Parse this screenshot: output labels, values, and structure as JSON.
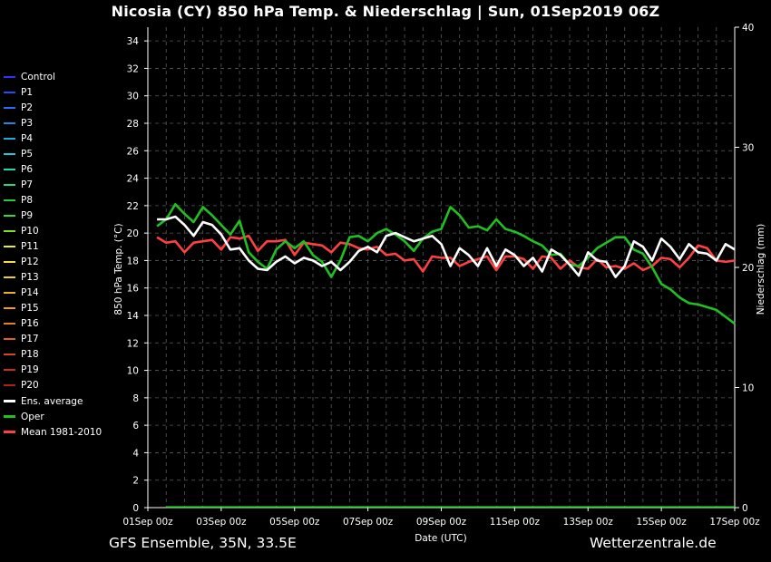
{
  "page": {
    "title": "Nicosia  (CY)  850 hPa Temp. & Niederschlag | Sun, 01Sep2019 06Z",
    "footer_left": "GFS Ensemble, 35N, 33.5E",
    "footer_right": "Wetterzentrale.de"
  },
  "chart_data": {
    "type": "line",
    "xlabel": "Date (UTC)",
    "ylabel": "850 hPa Temp. (°C)",
    "y2label": "Niederschlag (mm)",
    "x_ticks": [
      "01Sep 00z",
      "03Sep 00z",
      "05Sep 00z",
      "07Sep 00z",
      "09Sep 00z",
      "11Sep 00z",
      "13Sep 00z",
      "15Sep 00z",
      "17Sep 00z"
    ],
    "x_range_days": [
      0,
      16
    ],
    "ylim": [
      0,
      35
    ],
    "y_ticks": [
      0,
      2,
      4,
      6,
      8,
      10,
      12,
      14,
      16,
      18,
      20,
      22,
      24,
      26,
      28,
      30,
      32,
      34
    ],
    "y2lim": [
      0,
      40
    ],
    "y2_ticks": [
      0,
      10,
      20,
      30,
      40
    ],
    "grid": true,
    "legend_position": "left",
    "series": [
      {
        "name": "Control",
        "color": "#3030ff",
        "width": 1,
        "values": []
      },
      {
        "name": "P1",
        "color": "#1c50ff",
        "width": 1,
        "values": []
      },
      {
        "name": "P2",
        "color": "#2a6cff",
        "width": 1,
        "values": []
      },
      {
        "name": "P3",
        "color": "#2088e8",
        "width": 1,
        "values": []
      },
      {
        "name": "P4",
        "color": "#20a8e0",
        "width": 1,
        "values": []
      },
      {
        "name": "P5",
        "color": "#20c8d8",
        "width": 1,
        "values": []
      },
      {
        "name": "P6",
        "color": "#20d8a8",
        "width": 1,
        "values": []
      },
      {
        "name": "P7",
        "color": "#20d880",
        "width": 1,
        "values": []
      },
      {
        "name": "P8",
        "color": "#28c840",
        "width": 1,
        "values": []
      },
      {
        "name": "P9",
        "color": "#30e030",
        "width": 1,
        "values": []
      },
      {
        "name": "P10",
        "color": "#80e020",
        "width": 1,
        "values": []
      },
      {
        "name": "P11",
        "color": "#f0f020",
        "width": 1,
        "values": []
      },
      {
        "name": "P12",
        "color": "#f0e040",
        "width": 1,
        "values": []
      },
      {
        "name": "P13",
        "color": "#f0d020",
        "width": 1,
        "values": []
      },
      {
        "name": "P14",
        "color": "#f0b020",
        "width": 1,
        "values": []
      },
      {
        "name": "P15",
        "color": "#f0a000",
        "width": 1,
        "values": []
      },
      {
        "name": "P16",
        "color": "#e88020",
        "width": 1,
        "values": []
      },
      {
        "name": "P17",
        "color": "#e06020",
        "width": 1,
        "values": []
      },
      {
        "name": "P18",
        "color": "#d84820",
        "width": 1,
        "values": []
      },
      {
        "name": "P19",
        "color": "#c83010",
        "width": 1,
        "values": []
      },
      {
        "name": "P20",
        "color": "#b02010",
        "width": 1,
        "values": []
      },
      {
        "name": "Ens. average",
        "color": "#ffffff",
        "width": 2.6,
        "values": []
      },
      {
        "name": "Oper",
        "color": "#20c020",
        "width": 2.6,
        "values": []
      },
      {
        "name": "Mean 1981-2010",
        "color": "#ff4040",
        "width": 2.6,
        "values": []
      }
    ],
    "key_series": {
      "x_days": [
        0.25,
        0.5,
        0.75,
        1,
        1.25,
        1.5,
        1.75,
        2,
        2.25,
        2.5,
        2.75,
        3,
        3.25,
        3.5,
        3.75,
        4,
        4.25,
        4.5,
        4.75,
        5,
        5.25,
        5.5,
        5.75,
        6,
        6.25,
        6.5,
        6.75,
        7,
        7.25,
        7.5,
        7.75,
        8,
        8.25,
        8.5,
        8.75,
        9,
        9.25,
        9.5,
        9.75,
        10,
        10.25,
        10.5,
        10.75,
        11,
        11.25,
        11.5,
        11.75,
        12,
        12.25,
        12.5,
        12.75,
        13,
        13.25,
        13.5,
        13.75,
        14,
        14.25,
        14.5,
        14.75,
        15,
        15.25,
        15.5,
        15.75,
        16
      ],
      "ens_average": [
        21.0,
        21.0,
        21.2,
        20.6,
        19.8,
        20.8,
        20.6,
        19.9,
        18.8,
        18.9,
        18.0,
        17.4,
        17.3,
        17.9,
        18.3,
        17.8,
        18.2,
        18.0,
        17.6,
        17.9,
        17.3,
        17.9,
        18.7,
        19.0,
        18.6,
        19.8,
        20.0,
        19.7,
        19.4,
        19.6,
        19.8,
        19.2,
        17.6,
        18.9,
        18.4,
        17.6,
        18.9,
        17.6,
        18.8,
        18.4,
        17.6,
        18.2,
        17.2,
        18.8,
        18.4,
        17.7,
        16.9,
        18.6,
        18.0,
        17.9,
        16.8,
        17.6,
        19.4,
        19.0,
        18.0,
        19.6,
        19.0,
        18.1,
        19.2,
        18.6,
        18.5,
        18.0,
        19.2,
        18.8
      ],
      "oper": [
        20.5,
        21.0,
        22.1,
        21.4,
        20.8,
        21.9,
        21.3,
        20.6,
        19.9,
        20.9,
        18.6,
        17.9,
        17.4,
        18.8,
        19.4,
        18.9,
        19.4,
        18.4,
        17.9,
        16.8,
        18.0,
        19.7,
        19.8,
        19.4,
        20.0,
        20.3,
        19.9,
        19.4,
        18.7,
        19.6,
        20.1,
        20.3,
        21.9,
        21.3,
        20.4,
        20.5,
        20.2,
        21.0,
        20.3,
        20.1,
        19.8,
        19.4,
        19.1,
        18.4,
        18.5,
        17.7,
        17.6,
        18.2,
        18.9,
        19.3,
        19.7,
        19.7,
        18.8,
        18.5,
        17.5,
        16.3,
        15.9,
        15.3,
        14.9,
        14.8,
        14.6,
        14.4,
        13.9,
        13.4
      ],
      "climate_mean": [
        19.7,
        19.3,
        19.4,
        18.6,
        19.3,
        19.4,
        19.5,
        18.8,
        19.7,
        19.6,
        19.8,
        18.7,
        19.4,
        19.4,
        19.5,
        18.4,
        19.3,
        19.2,
        19.1,
        18.6,
        19.3,
        19.2,
        18.9,
        18.8,
        19.0,
        18.4,
        18.5,
        18.0,
        18.1,
        17.2,
        18.3,
        18.2,
        18.2,
        17.6,
        17.9,
        18.1,
        18.3,
        17.3,
        18.3,
        18.3,
        18.1,
        17.4,
        18.3,
        18.2,
        17.4,
        18.0,
        17.5,
        17.4,
        18.1,
        17.5,
        17.6,
        17.4,
        17.8,
        17.3,
        17.6,
        18.2,
        18.1,
        17.5,
        18.2,
        19.1,
        18.9,
        18.0,
        17.9,
        18.0
      ]
    }
  }
}
